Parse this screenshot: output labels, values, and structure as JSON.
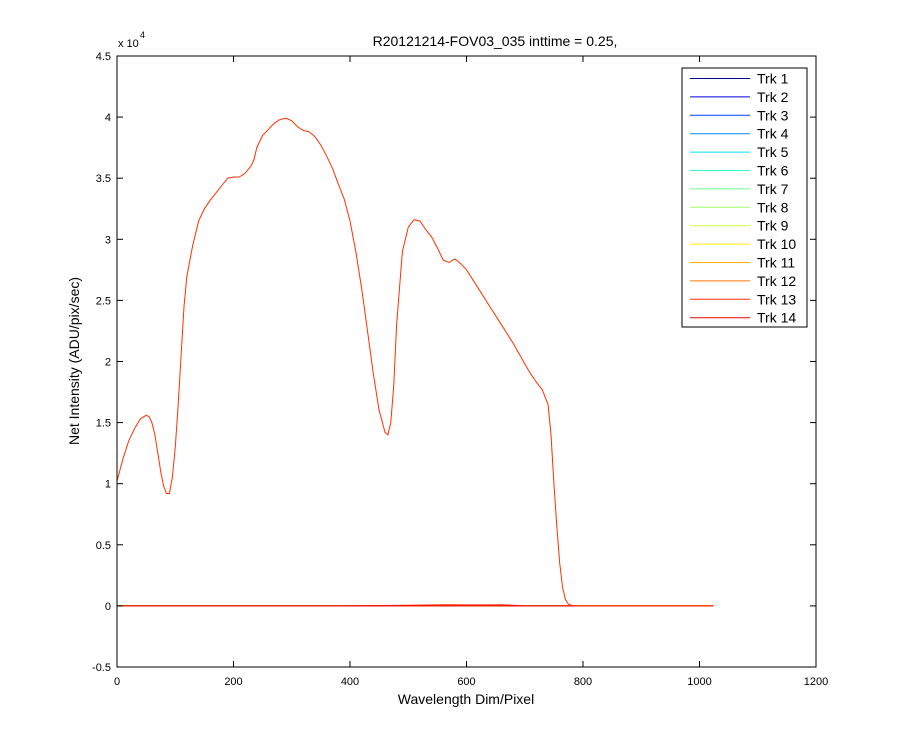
{
  "chart_data": {
    "type": "line",
    "title": "R20121214-FOV03_035 inttime = 0.25,",
    "xlabel": "Wavelength Dim/Pixel",
    "ylabel": "Net Intensity (ADU/pix/sec)",
    "xlim": [
      0,
      1200
    ],
    "ylim": [
      -5000,
      45000
    ],
    "x_ticks": [
      0,
      200,
      400,
      600,
      800,
      1000,
      1200
    ],
    "x_tick_labels": [
      "0",
      "200",
      "400",
      "600",
      "800",
      "1000",
      "1200"
    ],
    "y_ticks": [
      -5000,
      0,
      5000,
      10000,
      15000,
      20000,
      25000,
      30000,
      35000,
      40000,
      45000
    ],
    "y_tick_labels": [
      "-0.5",
      "0",
      "0.5",
      "1",
      "1.5",
      "2",
      "2.5",
      "3",
      "3.5",
      "4",
      "4.5"
    ],
    "y_exponent": {
      "base": "x 10",
      "power": "4"
    },
    "grid": false,
    "legend_position": "top-right",
    "series": [
      {
        "name": "Trk 1",
        "color": "#00008F",
        "x": [
          0,
          1024
        ],
        "y": [
          0,
          0
        ]
      },
      {
        "name": "Trk 2",
        "color": "#0000DF",
        "x": [
          0,
          1024
        ],
        "y": [
          0,
          0
        ]
      },
      {
        "name": "Trk 3",
        "color": "#0040FF",
        "x": [
          0,
          1024
        ],
        "y": [
          0,
          0
        ]
      },
      {
        "name": "Trk 4",
        "color": "#0090FF",
        "x": [
          0,
          1024
        ],
        "y": [
          0,
          0
        ]
      },
      {
        "name": "Trk 5",
        "color": "#00DFFF",
        "x": [
          0,
          1024
        ],
        "y": [
          0,
          0
        ]
      },
      {
        "name": "Trk 6",
        "color": "#30FFCF",
        "x": [
          0,
          1024
        ],
        "y": [
          0,
          0
        ]
      },
      {
        "name": "Trk 7",
        "color": "#70FF8F",
        "x": [
          0,
          1024
        ],
        "y": [
          0,
          0
        ]
      },
      {
        "name": "Trk 8",
        "color": "#9FFF60",
        "x": [
          0,
          1024
        ],
        "y": [
          0,
          0
        ]
      },
      {
        "name": "Trk 9",
        "color": "#CFFF30",
        "x": [
          0,
          1024
        ],
        "y": [
          0,
          0
        ]
      },
      {
        "name": "Trk 10",
        "color": "#FFEF00",
        "x": [
          0,
          1024
        ],
        "y": [
          0,
          0
        ]
      },
      {
        "name": "Trk 11",
        "color": "#FFAF00",
        "x": [
          0,
          1024
        ],
        "y": [
          0,
          0
        ]
      },
      {
        "name": "Trk 12",
        "color": "#FF7000",
        "x": [
          0,
          1024
        ],
        "y": [
          0,
          0
        ]
      },
      {
        "name": "Trk 13",
        "color": "#FF3000",
        "x": [
          0,
          380,
          500,
          560,
          620,
          660,
          700,
          1024
        ],
        "y": [
          0,
          0,
          50,
          100,
          80,
          100,
          0,
          0
        ]
      },
      {
        "name": "Trk 14",
        "color": "#EF0000",
        "x": [
          0,
          1024
        ],
        "y": [
          0,
          0
        ]
      }
    ],
    "main_series": {
      "name": "Trk 13",
      "color": "#FF3000",
      "x": [
        0,
        10,
        20,
        30,
        40,
        50,
        55,
        60,
        65,
        70,
        75,
        80,
        85,
        90,
        95,
        100,
        105,
        110,
        115,
        120,
        130,
        140,
        150,
        160,
        170,
        180,
        190,
        200,
        210,
        220,
        230,
        235,
        240,
        250,
        260,
        270,
        280,
        290,
        300,
        310,
        320,
        330,
        340,
        350,
        360,
        370,
        380,
        390,
        400,
        410,
        420,
        430,
        440,
        450,
        460,
        465,
        470,
        475,
        480,
        490,
        500,
        510,
        520,
        530,
        540,
        550,
        560,
        570,
        580,
        590,
        600,
        620,
        640,
        660,
        680,
        700,
        710,
        720,
        730,
        740,
        745,
        750,
        755,
        760,
        765,
        770,
        775,
        780,
        790,
        800,
        850,
        900,
        950,
        1000,
        1024
      ],
      "y": [
        10200,
        12000,
        13500,
        14500,
        15300,
        15600,
        15500,
        15000,
        14000,
        12500,
        11000,
        9800,
        9200,
        9200,
        10500,
        13000,
        16500,
        20500,
        24500,
        27000,
        29500,
        31500,
        32500,
        33200,
        33800,
        34400,
        35000,
        35100,
        35100,
        35400,
        36000,
        36500,
        37500,
        38500,
        39000,
        39500,
        39800,
        39900,
        39700,
        39200,
        38900,
        38800,
        38400,
        37700,
        36800,
        35800,
        34500,
        33300,
        31500,
        29000,
        26000,
        22500,
        19000,
        16000,
        14200,
        14000,
        15000,
        18000,
        23000,
        29000,
        31000,
        31600,
        31500,
        30800,
        30200,
        29300,
        28300,
        28100,
        28400,
        28000,
        27500,
        26000,
        24500,
        23000,
        21500,
        19800,
        19000,
        18300,
        17700,
        16500,
        14000,
        10000,
        6500,
        3500,
        1500,
        500,
        150,
        50,
        0,
        0,
        0,
        0,
        0,
        0,
        0
      ]
    }
  }
}
